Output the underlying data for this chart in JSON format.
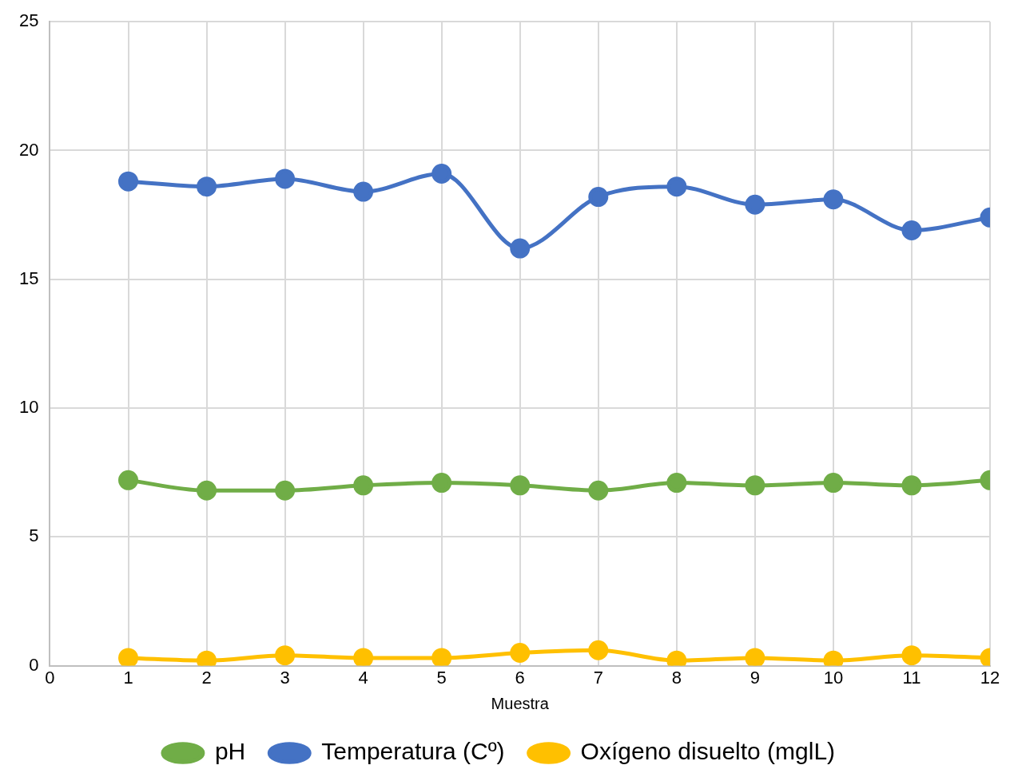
{
  "chart_data": {
    "type": "line",
    "xlabel": "Muestra",
    "x": [
      1,
      2,
      3,
      4,
      5,
      6,
      7,
      8,
      9,
      10,
      11,
      12
    ],
    "xlim": [
      0,
      12
    ],
    "xticks": [
      0,
      1,
      2,
      3,
      4,
      5,
      6,
      7,
      8,
      9,
      10,
      11,
      12
    ],
    "ylim": [
      0,
      25
    ],
    "yticks": [
      0,
      5,
      10,
      15,
      20,
      25
    ],
    "series": [
      {
        "name": "pH",
        "color": "#70ad47",
        "values": [
          7.2,
          6.8,
          6.8,
          7.0,
          7.1,
          7.0,
          6.8,
          7.1,
          7.0,
          7.1,
          7.0,
          7.2
        ]
      },
      {
        "name": "Temperatura (Cº)",
        "color": "#4472c4",
        "values": [
          18.8,
          18.6,
          18.9,
          18.4,
          19.1,
          16.2,
          18.2,
          18.6,
          17.9,
          18.1,
          16.9,
          17.4
        ]
      },
      {
        "name": "Oxígeno disuelto (mglL)",
        "color": "#ffc000",
        "values": [
          0.3,
          0.2,
          0.4,
          0.3,
          0.3,
          0.5,
          0.6,
          0.2,
          0.3,
          0.2,
          0.4,
          0.3
        ]
      }
    ],
    "grid": true,
    "legend": "bottom",
    "marker": "circle",
    "line_style": "solid"
  }
}
